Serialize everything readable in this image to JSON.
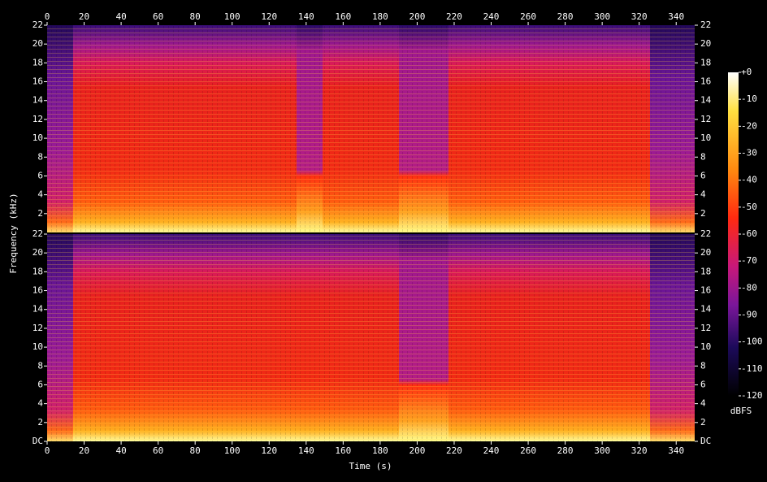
{
  "chart_data": {
    "type": "spectrogram",
    "x_label": "Time (s)",
    "y_label": "Frequency (kHz)",
    "xlim": [
      0,
      350
    ],
    "xticks": [
      0,
      20,
      40,
      60,
      80,
      100,
      120,
      140,
      160,
      180,
      200,
      220,
      240,
      260,
      280,
      300,
      320,
      340
    ],
    "panels": [
      {
        "ylim": [
          0,
          22
        ],
        "yticks": [
          2,
          4,
          6,
          8,
          10,
          12,
          14,
          16,
          18,
          20,
          22
        ]
      },
      {
        "ylim": [
          0,
          22
        ],
        "yticks": [
          {
            "value": 0,
            "label": "DC"
          },
          2,
          4,
          6,
          8,
          10,
          12,
          14,
          16,
          18,
          20,
          22
        ]
      }
    ],
    "colorbar": {
      "label": "dBFS",
      "lim": [
        -120,
        0
      ],
      "ticks": [
        {
          "value": 0,
          "label": "+0"
        },
        -10,
        -20,
        -30,
        -40,
        -50,
        -60,
        -70,
        -80,
        -90,
        -100,
        -110,
        -120
      ]
    }
  }
}
